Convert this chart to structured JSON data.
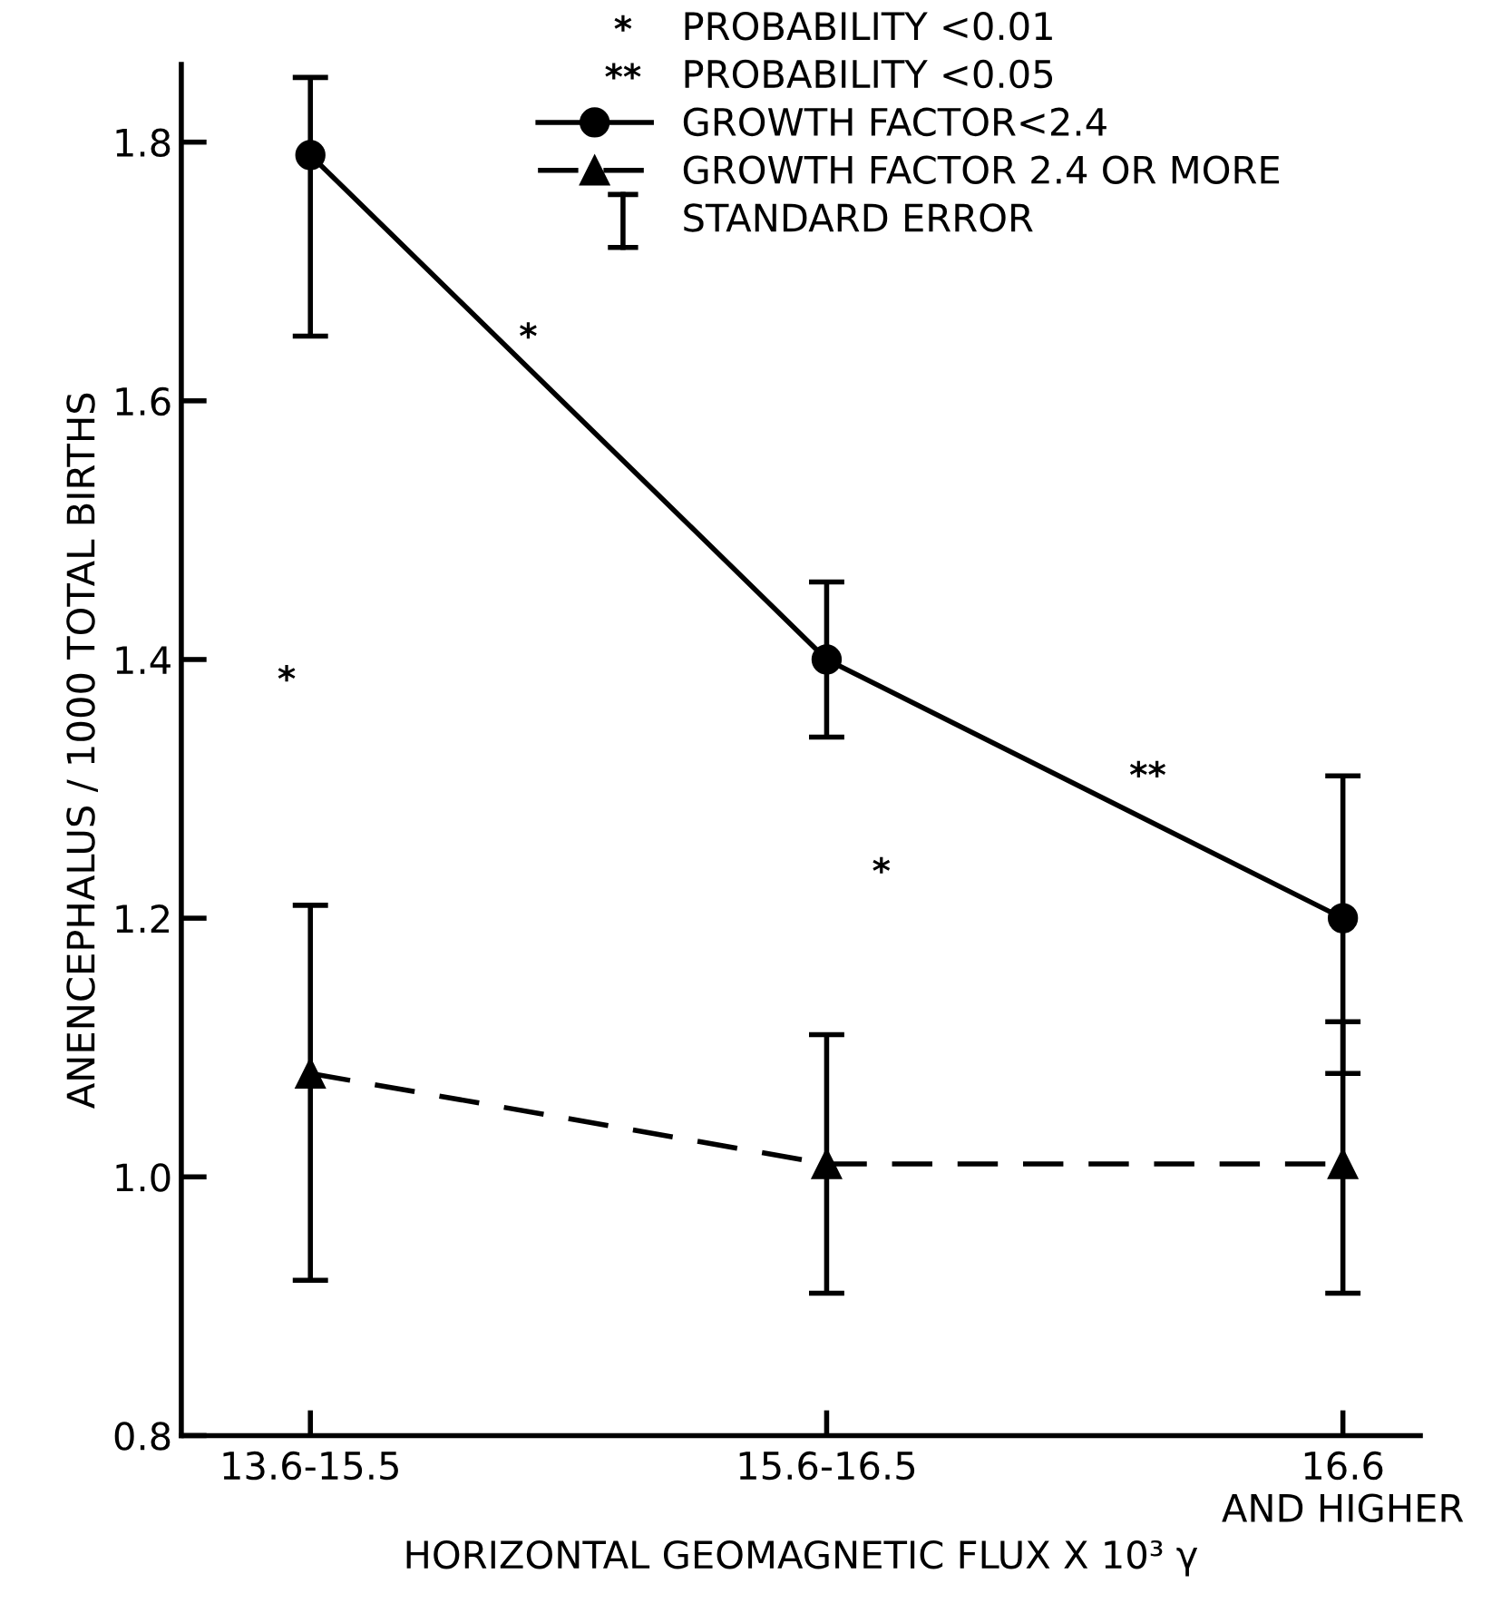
{
  "chart_data": {
    "type": "line",
    "xlabel": "HORIZONTAL GEOMAGNETIC FLUX X 10³ γ",
    "ylabel": "ANENCEPHALUS / 1000 TOTAL BIRTHS",
    "categories": [
      "13.6-15.5",
      "15.6-16.5",
      "16.6\nAND HIGHER"
    ],
    "series": [
      {
        "name": "GROWTH FACTOR<2.4",
        "color": "#000000",
        "values": [
          1.79,
          1.4,
          1.2
        ],
        "errors": [
          [
            1.65,
            1.85
          ],
          [
            1.34,
            1.46
          ],
          [
            1.08,
            1.31
          ]
        ],
        "marker": "circle",
        "line_style": "solid"
      },
      {
        "name": "GROWTH FACTOR 2.4 OR MORE",
        "color": "#000000",
        "values": [
          1.08,
          1.01,
          1.01
        ],
        "errors": [
          [
            0.92,
            1.21
          ],
          [
            0.91,
            1.11
          ],
          [
            0.91,
            1.12
          ]
        ],
        "marker": "triangle",
        "line_style": "dashed"
      }
    ],
    "ylim": [
      0.8,
      1.86
    ],
    "yticks": [
      0.8,
      {
        "value": 1.0,
        "label": "1.0"
      },
      1.2,
      1.4,
      1.6,
      1.8
    ],
    "annotations": [
      "PROBABILITY <0.01",
      "PROBABILITY <0.05",
      "STANDARD ERROR",
      "*",
      "*",
      "*",
      "**"
    ],
    "legend": "top right",
    "grid": false
  }
}
